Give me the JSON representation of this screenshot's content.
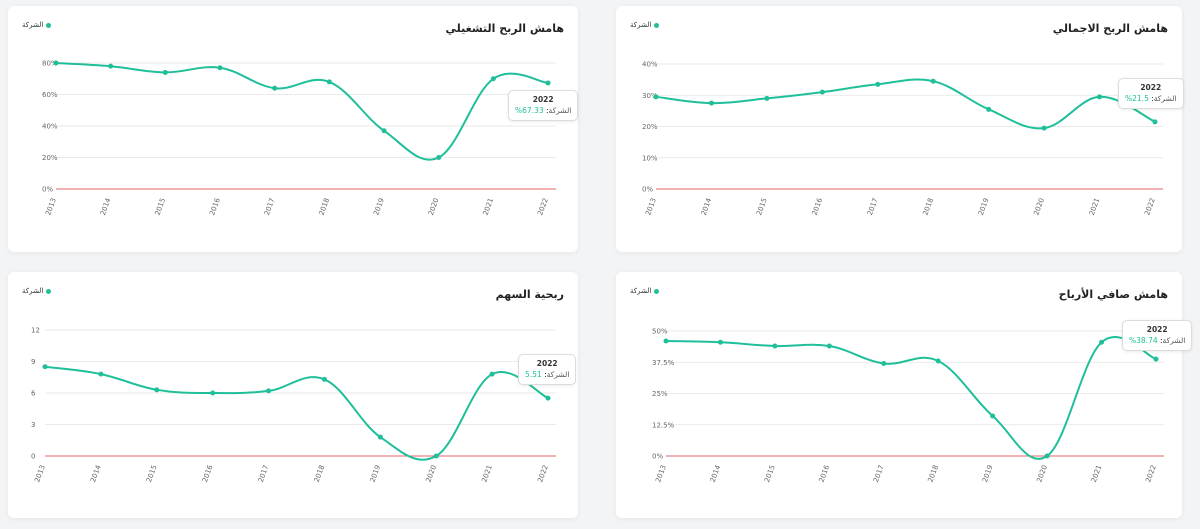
{
  "legend_label": "الشركة",
  "colors": {
    "line": "#1fbf9a",
    "zero_line": "#e06666",
    "grid": "#e3e3e3",
    "text": "#666666"
  },
  "chart_data": [
    {
      "id": "operating",
      "type": "line",
      "title": "هامش الربح التشغيلي",
      "x": [
        "2013",
        "2014",
        "2015",
        "2016",
        "2017",
        "2018",
        "2019",
        "2020",
        "2021",
        "2022"
      ],
      "yticks": [
        "0%",
        "20%",
        "40%",
        "60%",
        "80%"
      ],
      "ylim": [
        0,
        80
      ],
      "series": [
        {
          "name": "الشركة",
          "values": [
            80,
            78,
            74,
            77,
            64,
            68,
            37,
            20,
            70,
            67.33
          ]
        }
      ],
      "tooltip": {
        "year": "2022",
        "name": "الشركة",
        "value": "67.33%"
      }
    },
    {
      "id": "gross",
      "type": "line",
      "title": "هامش الربح الاجمالي",
      "x": [
        "2013",
        "2014",
        "2015",
        "2016",
        "2017",
        "2018",
        "2019",
        "2020",
        "2021",
        "2022"
      ],
      "yticks": [
        "0%",
        "10%",
        "20%",
        "30%",
        "40%"
      ],
      "ylim": [
        0,
        40
      ],
      "series": [
        {
          "name": "الشركة",
          "values": [
            29.5,
            27.5,
            29,
            31,
            33.5,
            34.5,
            25.5,
            19.5,
            29.5,
            21.5
          ]
        }
      ],
      "tooltip": {
        "year": "2022",
        "name": "الشركة",
        "value": "21.5%"
      }
    },
    {
      "id": "eps",
      "type": "line",
      "title": "ربحية السهم",
      "x": [
        "2013",
        "2014",
        "2015",
        "2016",
        "2017",
        "2018",
        "2019",
        "2020",
        "2021",
        "2022"
      ],
      "yticks": [
        "0",
        "3",
        "6",
        "9",
        "12"
      ],
      "ylim": [
        0,
        12
      ],
      "series": [
        {
          "name": "الشركة",
          "values": [
            8.5,
            7.8,
            6.3,
            6.0,
            6.2,
            7.3,
            1.8,
            0.0,
            7.8,
            5.51
          ]
        }
      ],
      "tooltip": {
        "year": "2022",
        "name": "الشركة",
        "value": "5.51"
      }
    },
    {
      "id": "net",
      "type": "line",
      "title": "هامش صافي الأرباح",
      "x": [
        "2013",
        "2014",
        "2015",
        "2016",
        "2017",
        "2018",
        "2019",
        "2020",
        "2021",
        "2022"
      ],
      "yticks": [
        "0%",
        "12.5%",
        "25%",
        "37.5%",
        "50%"
      ],
      "ylim": [
        0,
        50
      ],
      "series": [
        {
          "name": "الشركة",
          "values": [
            46,
            45.5,
            44,
            44,
            37,
            38,
            16,
            0,
            45.5,
            38.74
          ]
        }
      ],
      "tooltip": {
        "year": "2022",
        "name": "الشركة",
        "value": "38.74%"
      }
    }
  ]
}
